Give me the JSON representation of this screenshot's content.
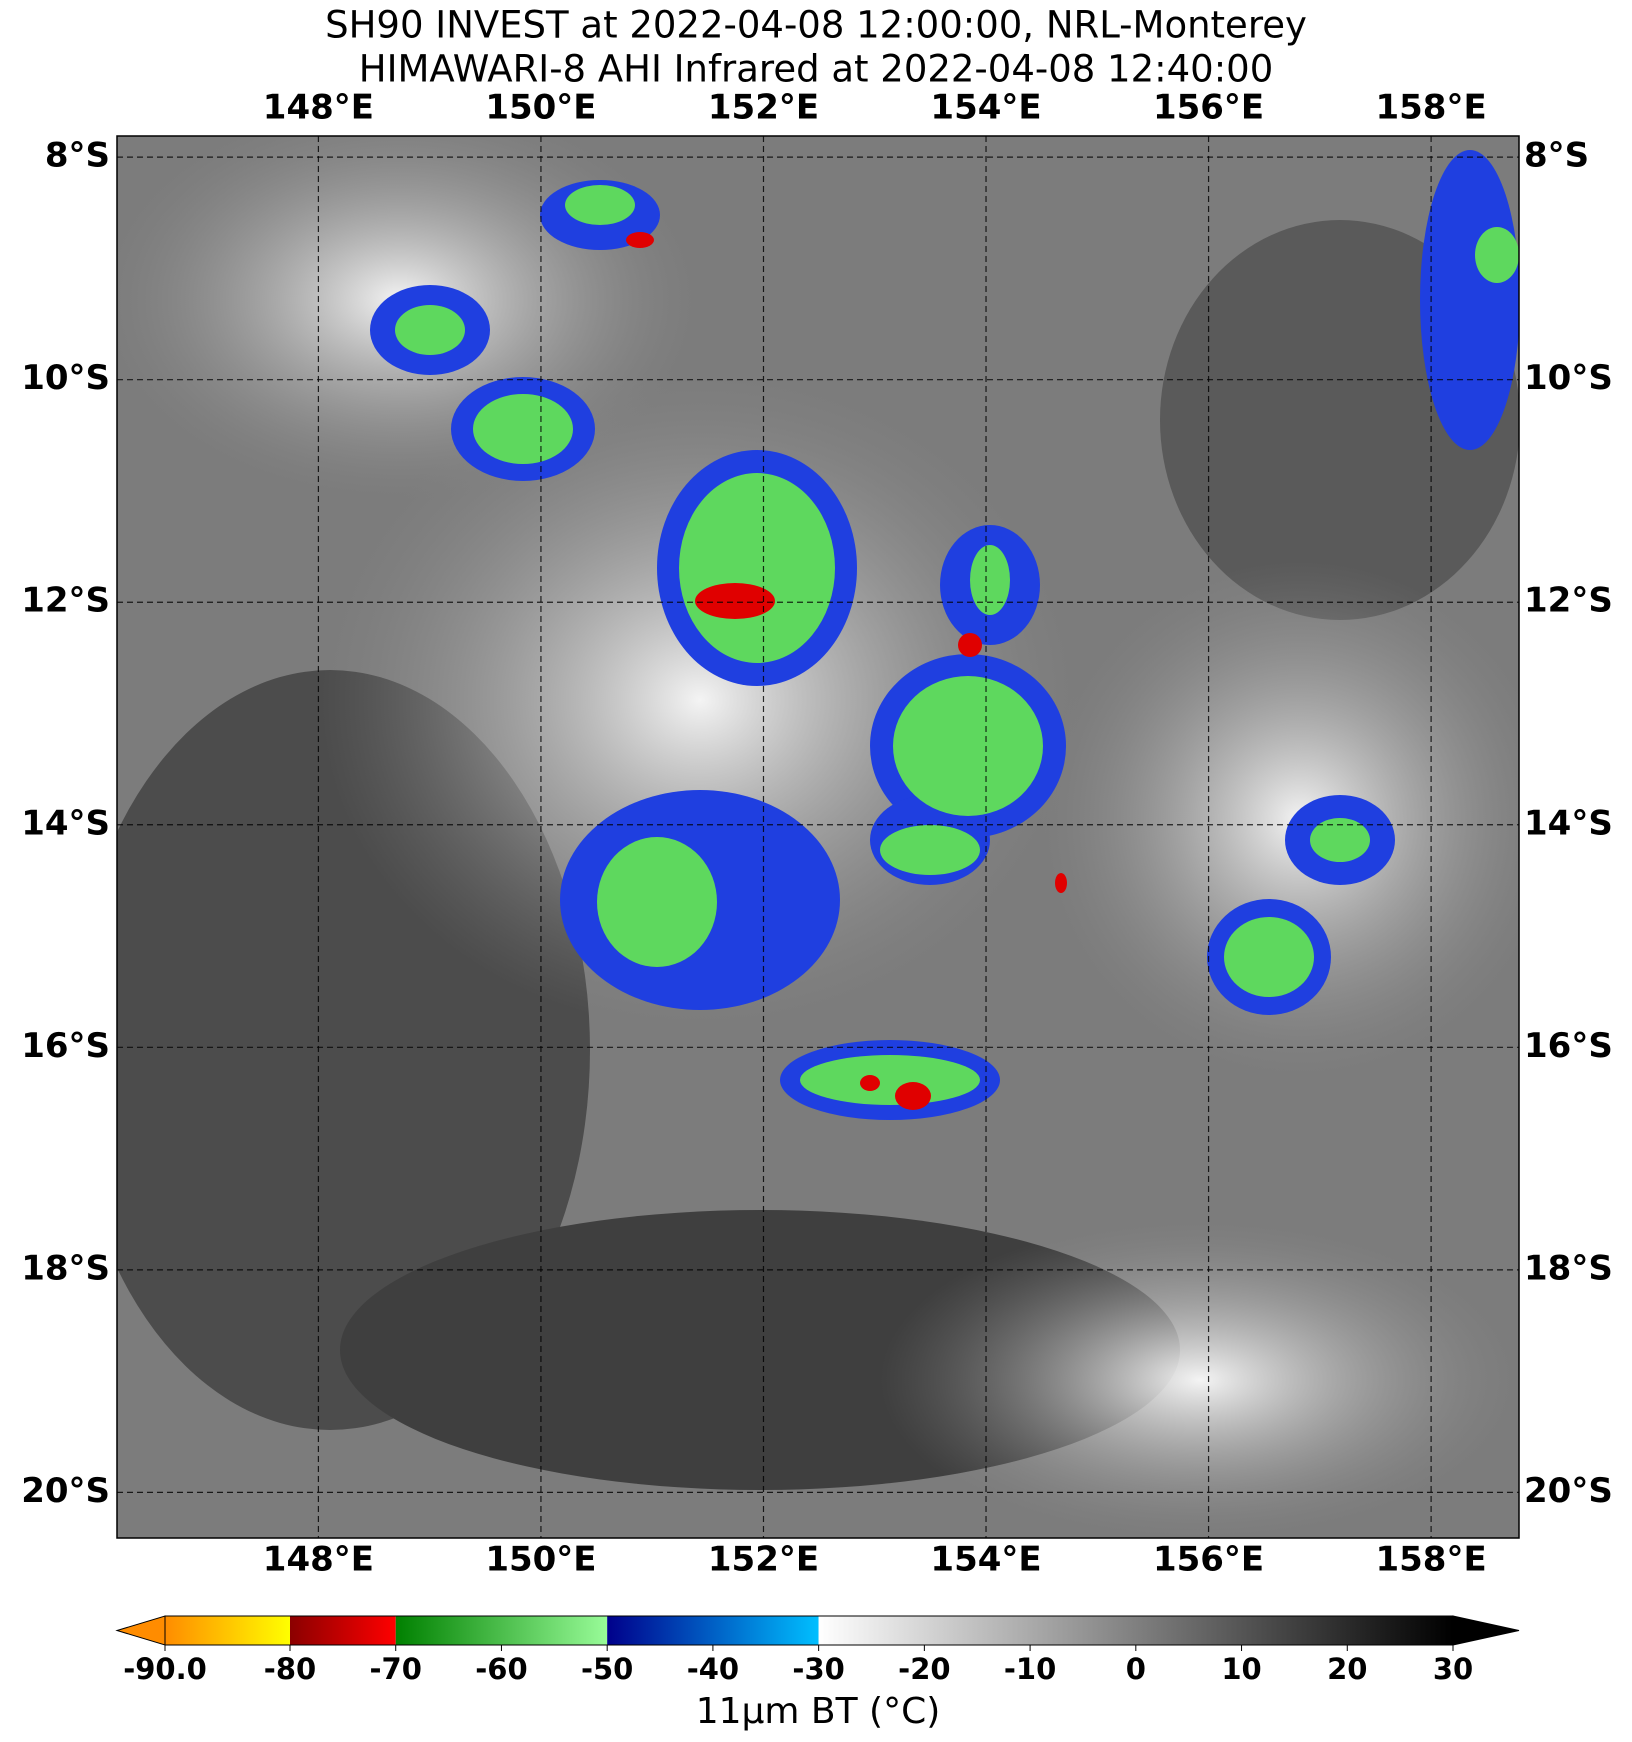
{
  "header": {
    "title_line1": "SH90 INVEST at 2022-04-08 12:00:00, NRL-Monterey",
    "title_line2": "HIMAWARI-8 AHI Infrared at 2022-04-08 12:40:00"
  },
  "map": {
    "lon_range": [
      146.19,
      158.79
    ],
    "lat_range": [
      -7.81,
      -20.41
    ],
    "lon_ticks": [
      {
        "value": 148,
        "label": "148°E"
      },
      {
        "value": 150,
        "label": "150°E"
      },
      {
        "value": 152,
        "label": "152°E"
      },
      {
        "value": 154,
        "label": "154°E"
      },
      {
        "value": 156,
        "label": "156°E"
      },
      {
        "value": 158,
        "label": "158°E"
      }
    ],
    "lat_ticks": [
      {
        "value": -8,
        "label": "8°S"
      },
      {
        "value": -10,
        "label": "10°S"
      },
      {
        "value": -12,
        "label": "12°S"
      },
      {
        "value": -14,
        "label": "14°S"
      },
      {
        "value": -16,
        "label": "16°S"
      },
      {
        "value": -18,
        "label": "18°S"
      },
      {
        "value": -20,
        "label": "20°S"
      }
    ]
  },
  "colorbar": {
    "label": "11μm BT (°C)",
    "ticks": [
      {
        "value": -90,
        "label": "-90.0"
      },
      -80,
      -70,
      -60,
      -50,
      -40,
      -30,
      -20,
      -10,
      0,
      10,
      20,
      30
    ],
    "segments": [
      {
        "from": -90,
        "to": -80,
        "colors": [
          "#ff8c00",
          "#ffff00"
        ]
      },
      {
        "from": -80,
        "to": -70,
        "colors": [
          "#8b0000",
          "#ff0000"
        ]
      },
      {
        "from": -70,
        "to": -50,
        "colors": [
          "#008000",
          "#98fb98"
        ]
      },
      {
        "from": -50,
        "to": -30,
        "colors": [
          "#00008b",
          "#00bfff"
        ]
      },
      {
        "from": -30,
        "to": 30,
        "colors": [
          "#ffffff",
          "#000000"
        ]
      }
    ]
  }
}
